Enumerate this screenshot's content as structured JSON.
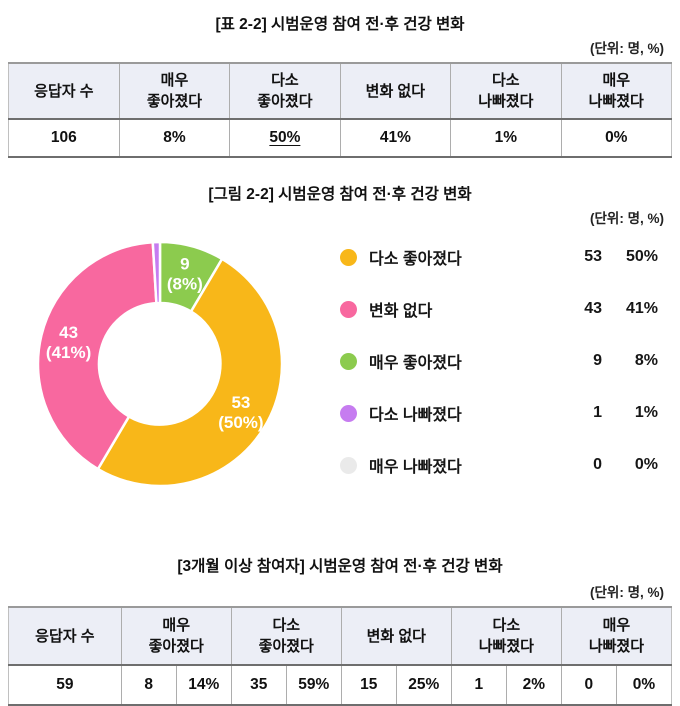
{
  "table1": {
    "title": "[표 2-2] 시범운영 참여 전·후 건강 변화",
    "unit": "(단위: 명, %)",
    "headers": [
      [
        "응답자 수"
      ],
      [
        "매우",
        "좋아졌다"
      ],
      [
        "다소",
        "좋아졌다"
      ],
      [
        "변화 없다"
      ],
      [
        "다소",
        "나빠졌다"
      ],
      [
        "매우",
        "나빠졌다"
      ]
    ],
    "row": {
      "respondents": "106",
      "values": [
        "8%",
        "50%",
        "41%",
        "1%",
        "0%"
      ]
    }
  },
  "figure": {
    "title": "[그림 2-2] 시범운영 참여 전·후 건강 변화",
    "unit": "(단위: 명, %)"
  },
  "chart_data": {
    "type": "pie",
    "donut": true,
    "title": "[그림 2-2] 시범운영 참여 전·후 건강 변화",
    "unit": "(단위: 명, %)",
    "total": 106,
    "start_angle": "12-oclock",
    "direction": "clockwise",
    "legend_position": "right",
    "slices": [
      {
        "name": "매우 좋아졌다",
        "value": 9,
        "pct": 8,
        "color": "#8ccb4e",
        "label_lines": [
          "9",
          "(8%)"
        ]
      },
      {
        "name": "다소 좋아졌다",
        "value": 53,
        "pct": 50,
        "color": "#f8b719",
        "label_lines": [
          "53",
          "(50%)"
        ]
      },
      {
        "name": "변화 없다",
        "value": 43,
        "pct": 41,
        "color": "#f8689f",
        "label_lines": [
          "43",
          "(41%)"
        ]
      },
      {
        "name": "다소 나빠졌다",
        "value": 1,
        "pct": 1,
        "color": "#c67cf0",
        "label_lines": []
      },
      {
        "name": "매우 나빠졌다",
        "value": 0,
        "pct": 0,
        "color": "#eaeaea",
        "label_lines": []
      }
    ],
    "legend": [
      {
        "name": "다소 좋아졌다",
        "count": "53",
        "pct": "50%",
        "color": "#f8b719"
      },
      {
        "name": "변화 없다",
        "count": "43",
        "pct": "41%",
        "color": "#f8689f"
      },
      {
        "name": "매우 좋아졌다",
        "count": "9",
        "pct": "8%",
        "color": "#8ccb4e"
      },
      {
        "name": "다소 나빠졌다",
        "count": "1",
        "pct": "1%",
        "color": "#c67cf0"
      },
      {
        "name": "매우 나빠졌다",
        "count": "0",
        "pct": "0%",
        "color": "#eaeaea"
      }
    ]
  },
  "table2": {
    "title": "[3개월 이상 참여자] 시범운영 참여 전·후 건강 변화",
    "unit": "(단위: 명, %)",
    "headers": [
      [
        "응답자 수"
      ],
      [
        "매우",
        "좋아졌다"
      ],
      [
        "다소",
        "좋아졌다"
      ],
      [
        "변화 없다"
      ],
      [
        "다소",
        "나빠졌다"
      ],
      [
        "매우",
        "나빠졌다"
      ]
    ],
    "row": {
      "respondents": "59",
      "pairs": [
        [
          "8",
          "14%"
        ],
        [
          "35",
          "59%"
        ],
        [
          "15",
          "25%"
        ],
        [
          "1",
          "2%"
        ],
        [
          "0",
          "0%"
        ]
      ]
    }
  }
}
